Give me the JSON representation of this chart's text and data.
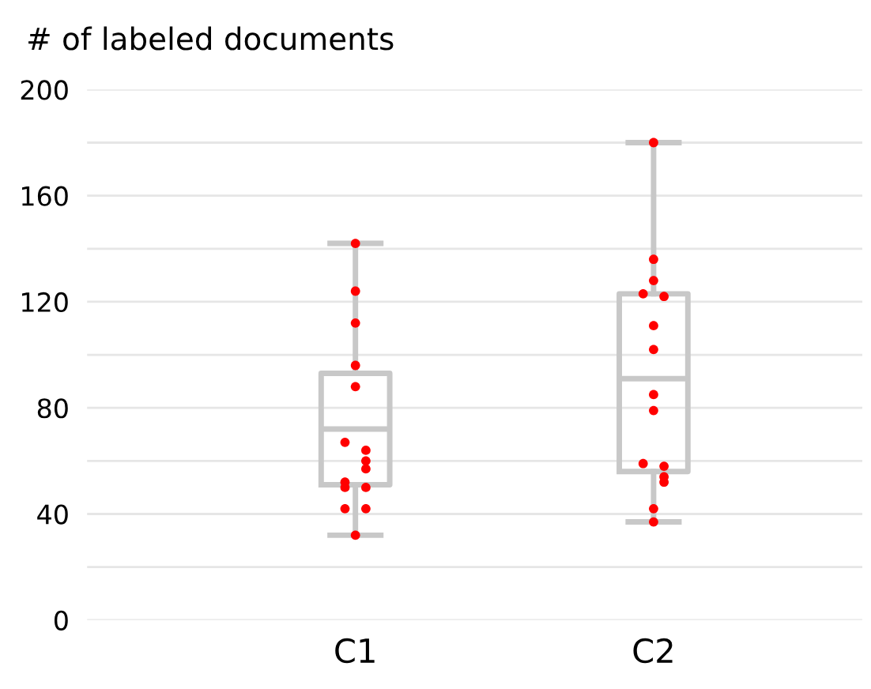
{
  "chart_data": {
    "type": "box",
    "title": "# of labeled documents",
    "categories": [
      "C1",
      "C2"
    ],
    "boxes": [
      {
        "low": 32,
        "q1": 51,
        "median": 72,
        "q3": 93,
        "high": 142
      },
      {
        "low": 37,
        "q1": 56,
        "median": 91,
        "q3": 123,
        "high": 180
      }
    ],
    "color": "#c8c8c8",
    "series": [
      {
        "type": "scatter",
        "color": "#ff0000",
        "x": [
          "C1",
          "C1",
          "C1",
          "C1",
          "C1",
          "C1",
          "C1",
          "C1",
          "C1",
          "C1",
          "C1",
          "C1",
          "C1",
          "C1",
          "C1",
          "C2",
          "C2",
          "C2",
          "C2",
          "C2",
          "C2",
          "C2",
          "C2",
          "C2",
          "C2",
          "C2",
          "C2",
          "C2",
          "C2",
          "C2"
        ],
        "values": [
          142,
          124,
          112,
          96,
          88,
          67,
          64,
          60,
          57,
          52,
          50,
          50,
          42,
          42,
          32,
          180,
          136,
          128,
          123,
          122,
          111,
          102,
          85,
          79,
          59,
          58,
          54,
          52,
          42,
          37
        ]
      }
    ],
    "ylim": [
      0,
      200
    ],
    "yticks": [
      0,
      {
        "value": 20,
        "label": null
      },
      40,
      {
        "value": 60,
        "label": null
      },
      80,
      {
        "value": 100,
        "label": null
      },
      120,
      {
        "value": 140,
        "label": null
      },
      160,
      {
        "value": 180,
        "label": null
      },
      200
    ],
    "grid": "y",
    "marker": "circle"
  }
}
